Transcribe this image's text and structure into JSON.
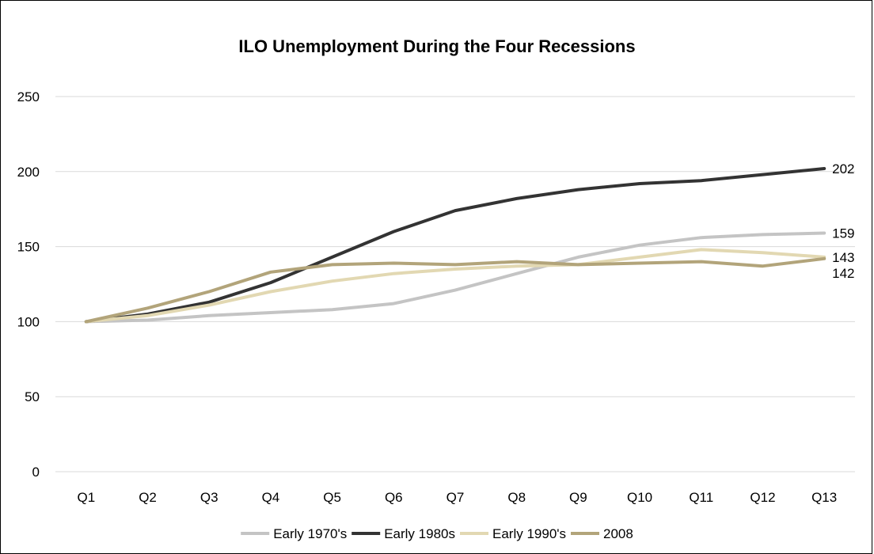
{
  "chart_data": {
    "type": "line",
    "title": "ILO Unemployment During the Four Recessions",
    "xlabel": "",
    "ylabel": "",
    "categories": [
      "Q1",
      "Q2",
      "Q3",
      "Q4",
      "Q5",
      "Q6",
      "Q7",
      "Q8",
      "Q9",
      "Q10",
      "Q11",
      "Q12",
      "Q13"
    ],
    "ylim": [
      0,
      250
    ],
    "yticks": [
      0,
      50,
      100,
      150,
      200,
      250
    ],
    "grid": true,
    "legend": "bottom",
    "series": [
      {
        "name": "Early 1970's",
        "color": "#c4c4c4",
        "values": [
          100,
          101,
          104,
          106,
          108,
          112,
          121,
          132,
          143,
          151,
          156,
          158,
          159
        ],
        "end_label": "159"
      },
      {
        "name": "Early 1980s",
        "color": "#333333",
        "values": [
          100,
          105,
          113,
          126,
          143,
          160,
          174,
          182,
          188,
          192,
          194,
          198,
          202
        ],
        "end_label": "202"
      },
      {
        "name": "Early 1990's",
        "color": "#e2d8b2",
        "values": [
          100,
          104,
          111,
          120,
          127,
          132,
          135,
          137,
          138,
          143,
          148,
          146,
          143
        ],
        "end_label": "143"
      },
      {
        "name": "2008",
        "color": "#b2a47a",
        "values": [
          100,
          109,
          120,
          133,
          138,
          139,
          138,
          140,
          138,
          139,
          140,
          137,
          142
        ],
        "end_label": "142"
      }
    ]
  }
}
